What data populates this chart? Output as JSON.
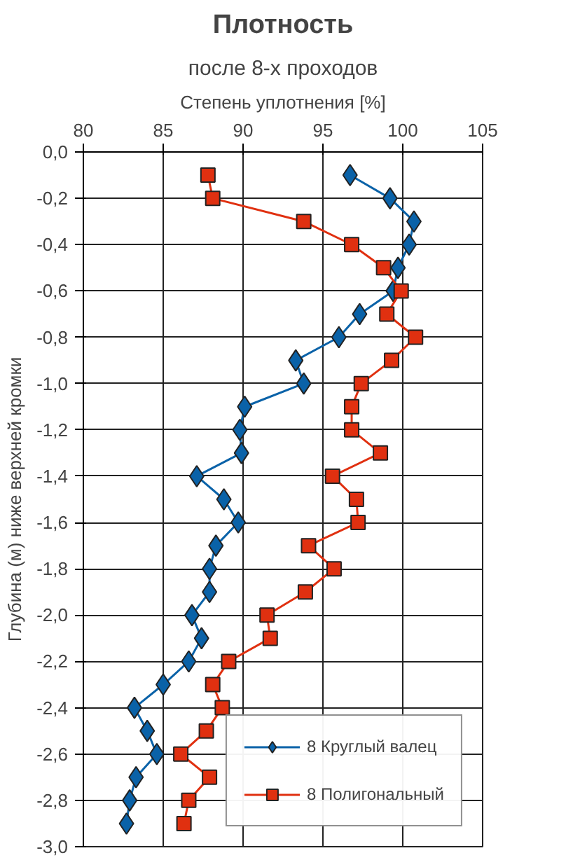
{
  "chart_data": {
    "type": "line",
    "title": "Плотность",
    "subtitle": "после 8-х проходов",
    "xlabel": "Степень уплотнения [%]",
    "ylabel": "Глубина (м) ниже верхней кромки",
    "xlim": [
      80,
      105
    ],
    "xticks": [
      80,
      85,
      90,
      95,
      100,
      105
    ],
    "ylim": [
      -3,
      0
    ],
    "yticks": [
      {
        "value": 0,
        "label": "0,0"
      },
      {
        "value": -0.2,
        "label": "-0,2"
      },
      {
        "value": -0.4,
        "label": "-0,4"
      },
      {
        "value": -0.6,
        "label": "-0,6"
      },
      {
        "value": -0.8,
        "label": "-0,8"
      },
      {
        "value": -1.0,
        "label": "-1,0"
      },
      {
        "value": -1.2,
        "label": "-1,2"
      },
      {
        "value": -1.4,
        "label": "-1,4"
      },
      {
        "value": -1.6,
        "label": "-1,6"
      },
      {
        "value": -1.8,
        "label": "-1,8"
      },
      {
        "value": -2.0,
        "label": "-2,0"
      },
      {
        "value": -2.2,
        "label": "-2,2"
      },
      {
        "value": -2.4,
        "label": "-2,4"
      },
      {
        "value": -2.6,
        "label": "-2,6"
      },
      {
        "value": -2.8,
        "label": "-2,8"
      },
      {
        "value": -3.0,
        "label": "-3,0"
      }
    ],
    "grid": true,
    "legend": "bottom right",
    "line_style": "solid",
    "series": [
      {
        "name": "8 Круглый валец",
        "color": "#0a62a8",
        "marker": "diamond",
        "x": [
          96.7,
          99.2,
          100.7,
          100.4,
          99.7,
          99.4,
          97.3,
          96.0,
          93.3,
          93.8,
          90.1,
          89.8,
          89.9,
          87.1,
          88.8,
          89.7,
          88.3,
          87.9,
          87.9,
          86.8,
          87.4,
          86.6,
          85.0,
          83.2,
          84.0,
          84.6,
          83.3,
          82.9,
          82.7
        ],
        "values": [
          -0.1,
          -0.2,
          -0.3,
          -0.4,
          -0.5,
          -0.6,
          -0.7,
          -0.8,
          -0.9,
          -1.0,
          -1.1,
          -1.2,
          -1.3,
          -1.4,
          -1.5,
          -1.6,
          -1.7,
          -1.8,
          -1.9,
          -2.0,
          -2.1,
          -2.2,
          -2.3,
          -2.4,
          -2.5,
          -2.6,
          -2.7,
          -2.8,
          -2.9
        ]
      },
      {
        "name": "8 Полигональный",
        "color": "#e03010",
        "marker": "square",
        "x": [
          87.8,
          88.1,
          93.8,
          96.8,
          98.8,
          99.9,
          99.0,
          100.8,
          99.3,
          97.4,
          96.8,
          96.8,
          98.6,
          95.6,
          97.1,
          97.2,
          94.1,
          95.7,
          93.9,
          91.5,
          91.7,
          89.1,
          88.1,
          88.7,
          87.7,
          86.1,
          87.9,
          86.6,
          86.3
        ],
        "values": [
          -0.1,
          -0.2,
          -0.3,
          -0.4,
          -0.5,
          -0.6,
          -0.7,
          -0.8,
          -0.9,
          -1.0,
          -1.1,
          -1.2,
          -1.3,
          -1.4,
          -1.5,
          -1.6,
          -1.7,
          -1.8,
          -1.9,
          -2.0,
          -2.1,
          -2.2,
          -2.3,
          -2.4,
          -2.5,
          -2.6,
          -2.7,
          -2.8,
          -2.9
        ]
      }
    ]
  }
}
